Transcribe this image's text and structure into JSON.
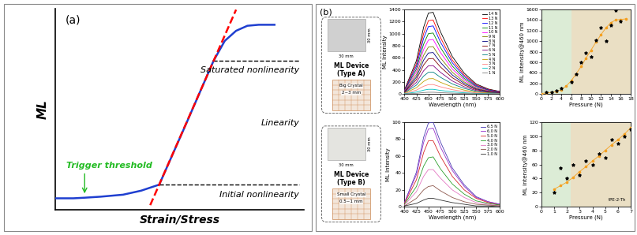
{
  "panel_labels": [
    "(a)",
    "(b)"
  ],
  "devices": [
    {
      "label_lines": [
        "ML Device",
        "(Type A)"
      ],
      "scale": "30 mm",
      "crystal_lines": [
        "Big Crystal",
        "2~3 mm"
      ],
      "color": "#d0d0d0"
    },
    {
      "label_lines": [
        "ML Device",
        "(Type B)"
      ],
      "scale": "30 mm",
      "crystal_lines": [
        "Small Crystal",
        "0.5~1 mm"
      ],
      "color": "#e4e4e0"
    }
  ],
  "chart_data": [
    {
      "type": "line",
      "x_label": "Strain/Stress",
      "y_label": "ML",
      "tick_labels": false,
      "xlim": [
        0,
        11
      ],
      "ylim": [
        0,
        10
      ],
      "xticks": [],
      "yticks": [],
      "series": [
        {
          "x": [
            0,
            0.8,
            1.3,
            2,
            3,
            3.8,
            4.6,
            5.8,
            7.0,
            7.5,
            8.0,
            8.5,
            9.0,
            9.7
          ],
          "values": [
            0.57,
            0.57,
            0.6,
            0.65,
            0.75,
            0.95,
            1.25,
            4.3,
            7.4,
            8.4,
            8.9,
            9.15,
            9.2,
            9.2
          ],
          "color": "#1f3fd0",
          "line_style": "solid",
          "marker": "none"
        },
        {
          "x": [
            4.2,
            8.0
          ],
          "values": [
            0.23,
            9.95
          ],
          "color": "#ff0000",
          "line_style": "dashed",
          "marker": "none"
        }
      ],
      "guide_lines": [
        {
          "y": 1.25,
          "x": [
            4.6,
            10.8
          ]
        },
        {
          "y": 7.4,
          "x": [
            7.0,
            10.8
          ]
        }
      ],
      "annotations": [
        "Saturated nonlinearity",
        "Linearity",
        "Initial nonlinearity"
      ],
      "trigger": {
        "label": "Trigger threshold",
        "x": 1.3,
        "y": 0.6,
        "color": "#22bb22"
      }
    },
    {
      "type": "line",
      "x_label": "Wavelength (nm)",
      "y_label": "ML Intensity",
      "legend": "upper right",
      "xlim": [
        400,
        600
      ],
      "ylim": [
        0,
        1400
      ],
      "xticks": [
        400,
        425,
        450,
        475,
        500,
        525,
        550,
        575,
        600
      ],
      "yticks": [
        0,
        200,
        400,
        600,
        800,
        1000,
        1200,
        1400
      ],
      "x": [
        400,
        425,
        440,
        450,
        460,
        475,
        500,
        525,
        550,
        575,
        600
      ],
      "series": [
        {
          "name": "14 N",
          "color": "#000000",
          "values": [
            69,
            552,
            1104,
            1339,
            1352,
            1035,
            621,
            345,
            166,
            83,
            41
          ]
        },
        {
          "name": "13 N",
          "color": "#ff0000",
          "values": [
            63,
            500,
            1000,
            1213,
            1225,
            938,
            563,
            313,
            150,
            75,
            38
          ]
        },
        {
          "name": "12 N",
          "color": "#0000ff",
          "values": [
            58,
            460,
            920,
            1116,
            1127,
            863,
            518,
            288,
            138,
            69,
            35
          ]
        },
        {
          "name": "11 N",
          "color": "#008000",
          "values": [
            52,
            412,
            824,
            999,
            1009,
            773,
            464,
            258,
            124,
            62,
            31
          ]
        },
        {
          "name": "10 N",
          "color": "#ff00ff",
          "values": [
            46,
            368,
            736,
            892,
            902,
            690,
            414,
            230,
            110,
            55,
            28
          ]
        },
        {
          "name": "9 N",
          "color": "#808000",
          "values": [
            40,
            320,
            640,
            776,
            784,
            600,
            360,
            200,
            96,
            48,
            24
          ]
        },
        {
          "name": "8 N",
          "color": "#000080",
          "values": [
            35,
            280,
            560,
            679,
            686,
            525,
            315,
            175,
            84,
            42,
            21
          ]
        },
        {
          "name": "7 N",
          "color": "#800000",
          "values": [
            30,
            240,
            480,
            582,
            588,
            450,
            270,
            150,
            72,
            36,
            18
          ]
        },
        {
          "name": "6 N",
          "color": "#800080",
          "values": [
            24,
            192,
            384,
            466,
            470,
            360,
            216,
            120,
            58,
            29,
            14
          ]
        },
        {
          "name": "5 N",
          "color": "#008080",
          "values": [
            19,
            148,
            296,
            359,
            363,
            278,
            167,
            93,
            44,
            22,
            11
          ]
        },
        {
          "name": "4 N",
          "color": "#c0a000",
          "values": [
            13,
            104,
            208,
            252,
            255,
            195,
            117,
            65,
            31,
            16,
            8
          ]
        },
        {
          "name": "3 N",
          "color": "#ff8080",
          "values": [
            8,
            64,
            128,
            155,
            157,
            120,
            72,
            40,
            19,
            10,
            5
          ]
        },
        {
          "name": "2 N",
          "color": "#00c0c0",
          "values": [
            4,
            32,
            64,
            78,
            78,
            60,
            36,
            20,
            10,
            5,
            2
          ]
        },
        {
          "name": "1 N",
          "color": "#808080",
          "values": [
            2,
            12,
            24,
            29,
            29,
            23,
            14,
            8,
            4,
            2,
            1
          ]
        }
      ]
    },
    {
      "type": "scatter",
      "x_label": "Pressure (N)",
      "y_label": "ML intensity@460 nm",
      "xlim": [
        0,
        18
      ],
      "ylim": [
        0,
        1600
      ],
      "xticks": [
        0,
        2,
        4,
        6,
        8,
        10,
        12,
        14,
        16,
        18
      ],
      "yticks": [
        0,
        200,
        400,
        600,
        800,
        1000,
        1200,
        1400,
        1600
      ],
      "regions": [
        {
          "x": [
            0,
            6
          ],
          "color": "#dcecd6"
        },
        {
          "x": [
            6,
            18
          ],
          "color": "#eadfc4"
        }
      ],
      "series": [
        {
          "type": "line",
          "color": "#f5a020",
          "marker": "circle",
          "line_style": "solid",
          "x": [
            0,
            1,
            2,
            3,
            4,
            5,
            6,
            7,
            8,
            9,
            10,
            11,
            12,
            13,
            14,
            15,
            16,
            17
          ],
          "values": [
            10,
            20,
            30,
            50,
            80,
            150,
            250,
            380,
            520,
            680,
            830,
            980,
            1120,
            1250,
            1350,
            1400,
            1410,
            1420
          ]
        },
        {
          "type": "scatter",
          "color": "#000000",
          "marker": "star",
          "x": [
            1,
            2,
            3,
            4,
            6,
            7,
            8,
            9,
            10,
            11,
            12,
            13,
            14,
            15,
            16
          ],
          "values": [
            30,
            40,
            60,
            100,
            230,
            380,
            600,
            780,
            700,
            1020,
            1250,
            1000,
            1300,
            1580,
            1380
          ]
        }
      ]
    },
    {
      "type": "line",
      "x_label": "Wavelength (nm)",
      "y_label": "ML Intensity",
      "legend": "upper right",
      "xlim": [
        400,
        600
      ],
      "ylim": [
        0,
        100
      ],
      "xticks": [
        400,
        425,
        450,
        475,
        500,
        525,
        550,
        575,
        600
      ],
      "yticks": [
        0,
        20,
        40,
        60,
        80,
        100
      ],
      "x": [
        400,
        425,
        440,
        450,
        460,
        475,
        500,
        525,
        550,
        575,
        600
      ],
      "series": [
        {
          "name": "6.5 N",
          "color": "#4b3cb4",
          "values": [
            5,
            41,
            82,
            99,
            100,
            77,
            46,
            26,
            12,
            6,
            3
          ]
        },
        {
          "name": "6.0 N",
          "color": "#9933cc",
          "values": [
            5,
            38,
            76,
            92,
            93,
            71,
            43,
            24,
            11,
            6,
            3
          ]
        },
        {
          "name": "5.0 N",
          "color": "#d62728",
          "values": [
            4,
            32,
            64,
            78,
            78,
            60,
            36,
            20,
            10,
            5,
            2
          ]
        },
        {
          "name": "4.0 N",
          "color": "#2ca02c",
          "values": [
            3,
            24,
            48,
            58,
            59,
            45,
            27,
            15,
            7,
            4,
            2
          ]
        },
        {
          "name": "3.0 N",
          "color": "#e377c2",
          "values": [
            2,
            18,
            36,
            44,
            44,
            34,
            20,
            11,
            5,
            3,
            1
          ]
        },
        {
          "name": "2.0 N",
          "color": "#8c564b",
          "values": [
            1,
            10,
            20,
            24,
            25,
            19,
            11,
            6,
            3,
            2,
            1
          ]
        },
        {
          "name": "1.0 N",
          "color": "#333333",
          "values": [
            1,
            4,
            8,
            10,
            10,
            8,
            5,
            3,
            1,
            1,
            0
          ]
        }
      ]
    },
    {
      "type": "scatter",
      "x_label": "Pressure (N)",
      "y_label": "ML intensity@460 nm",
      "xlim": [
        0,
        7
      ],
      "ylim": [
        0,
        120
      ],
      "xticks": [
        0,
        1,
        2,
        3,
        4,
        5,
        6,
        7
      ],
      "yticks": [
        0,
        20,
        40,
        60,
        80,
        100,
        120
      ],
      "regions": [
        {
          "x": [
            0,
            2.3
          ],
          "color": "#dcecd6"
        },
        {
          "x": [
            2.3,
            7
          ],
          "color": "#eadfc4"
        }
      ],
      "annotations": [
        "tPE-2-Th"
      ],
      "series": [
        {
          "type": "line",
          "color": "#f5a020",
          "marker": "circle",
          "line_style": "solid",
          "x": [
            1,
            1.5,
            2,
            2.5,
            3,
            3.5,
            4,
            4.5,
            5,
            5.5,
            6,
            6.5,
            7
          ],
          "values": [
            25,
            30,
            35,
            42,
            50,
            57,
            65,
            72,
            80,
            88,
            95,
            103,
            112
          ]
        },
        {
          "type": "scatter",
          "color": "#000000",
          "marker": "star",
          "x": [
            1,
            1.5,
            2,
            2.5,
            3,
            3.5,
            4,
            4.5,
            5,
            5.5,
            6,
            6.5,
            7
          ],
          "values": [
            20,
            55,
            40,
            60,
            45,
            65,
            60,
            75,
            70,
            95,
            90,
            100,
            110
          ]
        }
      ]
    }
  ]
}
